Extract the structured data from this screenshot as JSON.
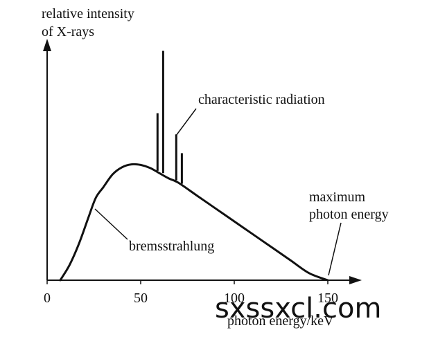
{
  "chart_data": {
    "type": "line",
    "title": "",
    "ylabel_lines": [
      "relative intensity",
      "of X-rays"
    ],
    "xlabel": "photon energy/keV",
    "x_ticks": [
      0,
      50,
      100,
      150
    ],
    "xlim": [
      0,
      160
    ],
    "ylim": [
      0,
      1.24
    ],
    "grid": false,
    "series": [
      {
        "name": "bremsstrahlung",
        "x": [
          7,
          12,
          17,
          22,
          26,
          30,
          35,
          40,
          45,
          50,
          55,
          60,
          65,
          70,
          80,
          90,
          100,
          110,
          120,
          130,
          140,
          150
        ],
        "y": [
          0,
          0.13,
          0.31,
          0.53,
          0.7,
          0.79,
          0.9,
          0.96,
          0.985,
          0.98,
          0.955,
          0.91,
          0.865,
          0.83,
          0.72,
          0.61,
          0.5,
          0.39,
          0.28,
          0.17,
          0.06,
          0
        ]
      }
    ],
    "characteristic_lines": [
      {
        "x": 59,
        "base": 0.93,
        "peak": 1.42
      },
      {
        "x": 62,
        "base": 0.91,
        "peak": 1.95
      },
      {
        "x": 69,
        "base": 0.85,
        "peak": 1.24
      },
      {
        "x": 72,
        "base": 0.82,
        "peak": 1.08
      }
    ],
    "annotations": {
      "characteristic": "characteristic radiation",
      "bremsstrahlung": "bremsstrahlung",
      "maximum_lines": [
        "maximum",
        "photon energy"
      ]
    }
  },
  "watermark": "sxssxcl.com"
}
